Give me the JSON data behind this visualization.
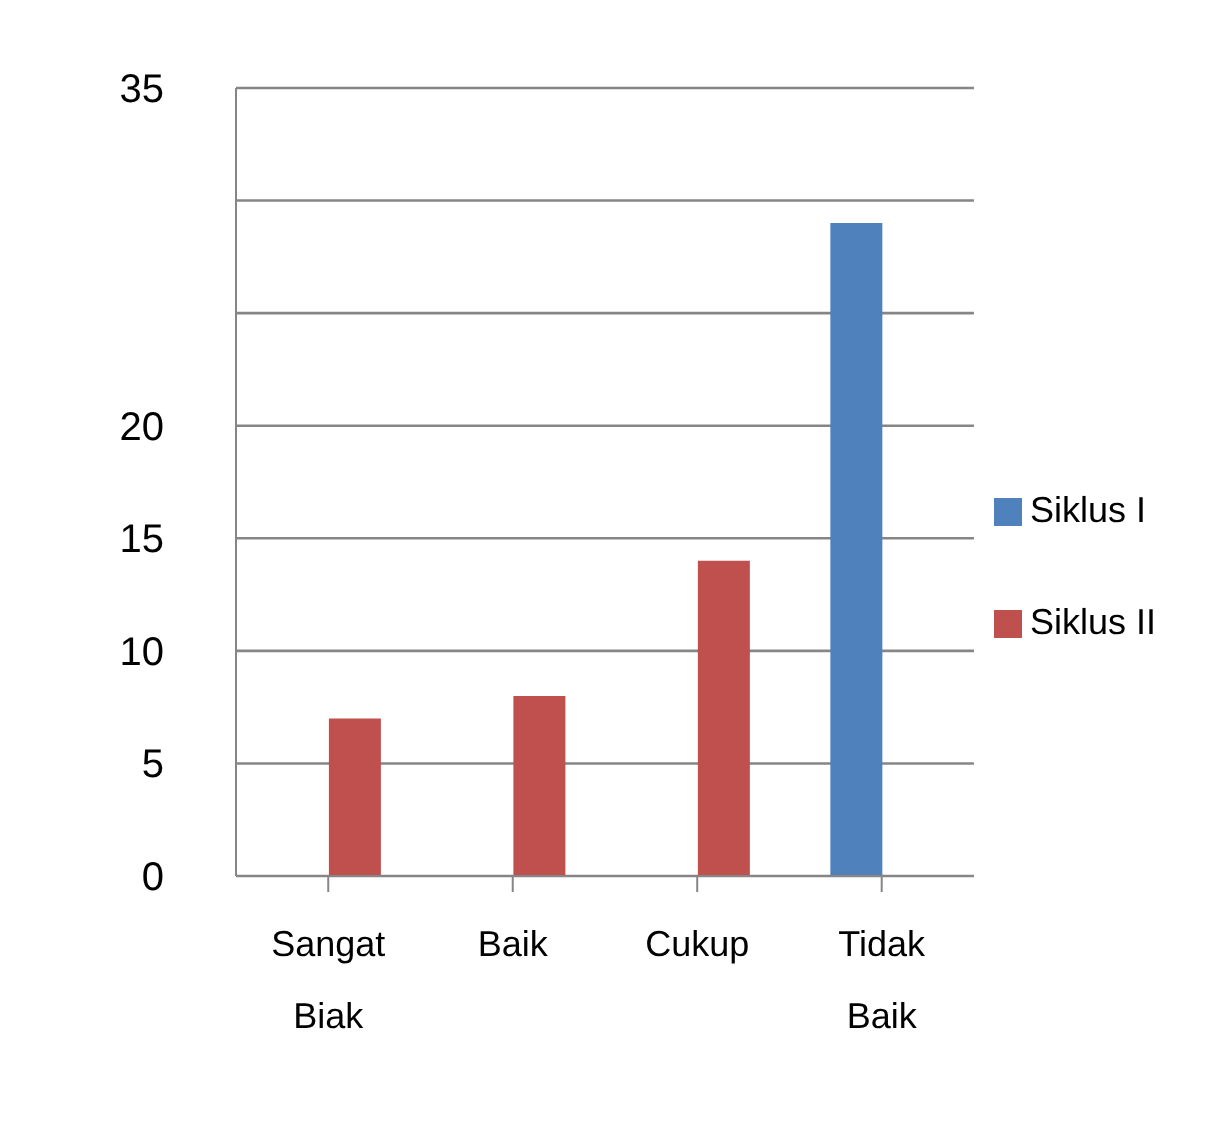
{
  "chart_data": {
    "type": "bar",
    "categories": [
      "Sangat Biak",
      "Baik",
      "Cukup",
      "Tidak Baik"
    ],
    "series": [
      {
        "name": "Siklus I",
        "color": "#4f81bd",
        "values": [
          null,
          null,
          null,
          29
        ]
      },
      {
        "name": "Siklus II",
        "color": "#c0504d",
        "values": [
          7,
          8,
          14,
          null
        ]
      }
    ],
    "ylim": [
      0,
      35
    ],
    "yticks": [
      0,
      5,
      10,
      15,
      20,
      {
        "value": 25,
        "label": null
      },
      {
        "value": 30,
        "label": null
      },
      35
    ],
    "grid": "y",
    "legend": "right"
  }
}
